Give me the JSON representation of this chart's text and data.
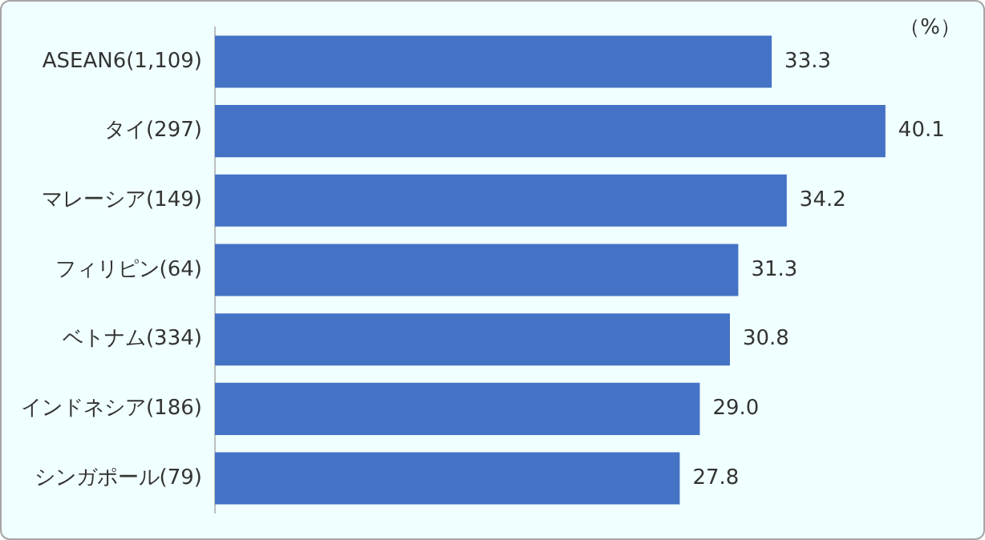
{
  "chart_data": {
    "type": "bar",
    "orientation": "horizontal",
    "categories": [
      "ASEAN6(1,109)",
      "タイ(297)",
      "マレーシア(149)",
      "フィリピン(64)",
      "ベトナム(334)",
      "インドネシア(186)",
      "シンガポール(79)"
    ],
    "values": [
      33.3,
      40.1,
      34.2,
      31.3,
      30.8,
      29.0,
      27.8
    ],
    "value_labels": [
      "33.3",
      "40.1",
      "34.2",
      "31.3",
      "30.8",
      "29.0",
      "27.8"
    ],
    "color": "#4472c4",
    "tick_labels": "y",
    "grid": false,
    "legend": false,
    "annotations": [
      "（%）"
    ]
  }
}
